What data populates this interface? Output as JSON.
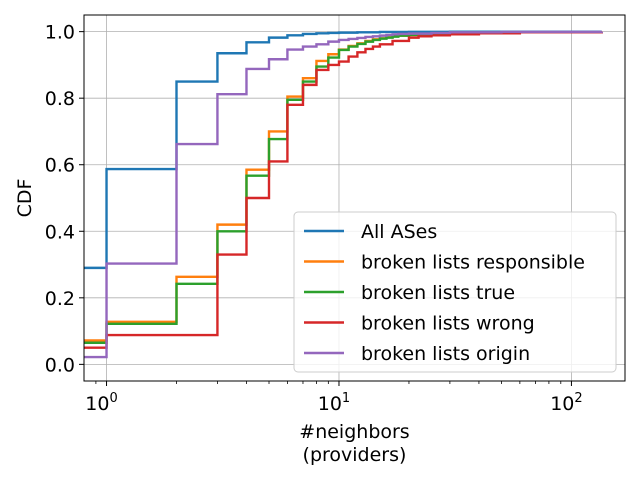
{
  "chart_data": {
    "type": "line",
    "title": "",
    "xlabel": "#neighbors",
    "xlabel2": "(providers)",
    "ylabel": "CDF",
    "xscale": "log",
    "xlim": [
      0.8,
      170
    ],
    "ylim": [
      -0.05,
      1.05
    ],
    "grid": true,
    "legend_position": "lower-right",
    "xticks": [
      {
        "value": 1,
        "base": "10",
        "exp": "0"
      },
      {
        "value": 10,
        "base": "10",
        "exp": "1"
      },
      {
        "value": 100,
        "base": "10",
        "exp": "2"
      }
    ],
    "yticks": [
      {
        "value": 0.0,
        "label": "0.0"
      },
      {
        "value": 0.2,
        "label": "0.2"
      },
      {
        "value": 0.4,
        "label": "0.4"
      },
      {
        "value": 0.6,
        "label": "0.6"
      },
      {
        "value": 0.8,
        "label": "0.8"
      },
      {
        "value": 1.0,
        "label": "1.0"
      }
    ],
    "series": [
      {
        "name": "All ASes",
        "color": "#1f77b4",
        "x": [
          0.8,
          1,
          2,
          3,
          4,
          5,
          6,
          7,
          8,
          9,
          10,
          12,
          15,
          20,
          30,
          135
        ],
        "y": [
          0.29,
          0.587,
          0.85,
          0.935,
          0.968,
          0.982,
          0.989,
          0.993,
          0.995,
          0.996,
          0.997,
          0.998,
          0.999,
          0.9995,
          0.9998,
          1.0
        ]
      },
      {
        "name": "broken lists responsible",
        "color": "#ff7f0e",
        "x": [
          0.8,
          1,
          2,
          3,
          4,
          5,
          6,
          7,
          8,
          9,
          10,
          11,
          12,
          13,
          14,
          15,
          16,
          17,
          18,
          20,
          25,
          30,
          50,
          135
        ],
        "y": [
          0.072,
          0.128,
          0.263,
          0.42,
          0.585,
          0.7,
          0.805,
          0.86,
          0.912,
          0.932,
          0.946,
          0.957,
          0.965,
          0.972,
          0.977,
          0.98,
          0.983,
          0.986,
          0.988,
          0.99,
          0.993,
          0.996,
          0.998,
          1.0
        ]
      },
      {
        "name": "broken lists true",
        "color": "#2ca02c",
        "x": [
          0.8,
          1,
          2,
          3,
          4,
          5,
          6,
          7,
          8,
          9,
          10,
          11,
          12,
          13,
          14,
          15,
          16,
          17,
          18,
          20,
          25,
          30,
          50,
          135
        ],
        "y": [
          0.065,
          0.122,
          0.242,
          0.4,
          0.567,
          0.677,
          0.795,
          0.85,
          0.895,
          0.922,
          0.945,
          0.955,
          0.963,
          0.97,
          0.975,
          0.979,
          0.982,
          0.985,
          0.988,
          0.99,
          0.993,
          0.996,
          0.998,
          1.0
        ]
      },
      {
        "name": "broken lists wrong",
        "color": "#d62728",
        "x": [
          0.8,
          1,
          2,
          3,
          4,
          5,
          6,
          7,
          8,
          9,
          10,
          11,
          12,
          13,
          14,
          15,
          17,
          20,
          22,
          25,
          30,
          40,
          60,
          135
        ],
        "y": [
          0.05,
          0.088,
          0.088,
          0.33,
          0.5,
          0.61,
          0.78,
          0.84,
          0.885,
          0.9,
          0.91,
          0.925,
          0.938,
          0.948,
          0.955,
          0.962,
          0.972,
          0.982,
          0.986,
          0.989,
          0.992,
          0.995,
          0.998,
          1.0
        ]
      },
      {
        "name": "broken lists origin",
        "color": "#9467bd",
        "x": [
          0.8,
          1,
          2,
          3,
          4,
          5,
          6,
          7,
          8,
          9,
          10,
          11,
          12,
          13,
          14,
          15,
          16,
          17,
          18,
          20,
          25,
          30,
          50,
          135
        ],
        "y": [
          0.022,
          0.303,
          0.662,
          0.812,
          0.888,
          0.917,
          0.946,
          0.955,
          0.962,
          0.97,
          0.975,
          0.978,
          0.981,
          0.984,
          0.986,
          0.988,
          0.99,
          0.992,
          0.993,
          0.994,
          0.996,
          0.998,
          0.999,
          1.0
        ]
      }
    ]
  }
}
